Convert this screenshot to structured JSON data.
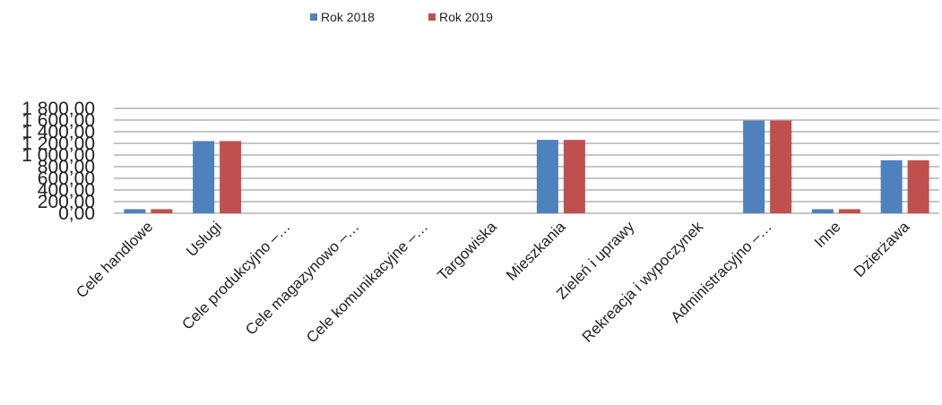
{
  "chart_data": {
    "type": "bar",
    "title": "",
    "xlabel": "",
    "ylabel": "",
    "categories": [
      "Cele handlowe",
      "Usługi",
      "Cele produkcyjno –…",
      "Cele magazynowo –…",
      "Cele komunikacyjne –…",
      "Targowiska",
      "Mieszkania",
      "Zieleń i uprawy",
      "Rekreacja i wypoczynek",
      "Administracyjno –…",
      "Inne",
      "Dzierżawa"
    ],
    "series": [
      {
        "name": "Rok 2018",
        "color": "#4f81bd",
        "values": [
          70,
          1240,
          0,
          0,
          0,
          0,
          1260,
          0,
          0,
          1590,
          70,
          910
        ]
      },
      {
        "name": "Rok 2019",
        "color": "#c0504d",
        "values": [
          70,
          1240,
          0,
          0,
          0,
          0,
          1260,
          0,
          0,
          1590,
          70,
          910
        ]
      }
    ],
    "ylim": [
      0,
      1800
    ],
    "yticks": [
      "0,00",
      "200,00",
      "400,00",
      "600,00",
      "800,00",
      "1 000,00",
      "1 200,00",
      "1 400,00",
      "1 600,00",
      "1 800,00"
    ],
    "grid": true,
    "legend": "top-center"
  }
}
